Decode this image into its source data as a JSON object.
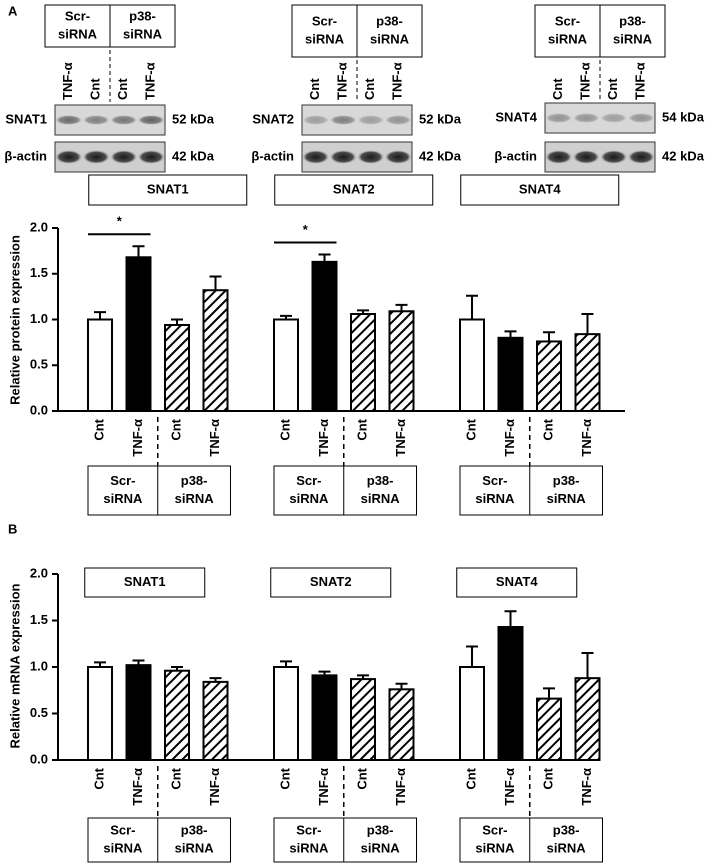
{
  "sirna_labels": [
    [
      "Scr-",
      "siRNA"
    ],
    [
      "p38-",
      "siRNA"
    ]
  ],
  "blots": [
    {
      "target": "SNAT1",
      "target_kda": "52 kDa",
      "control": "β-actin",
      "control_kda": "42 kDa",
      "lanes": [
        "TNF-α",
        "Cnt",
        "Cnt",
        "TNF-α"
      ]
    },
    {
      "target": "SNAT2",
      "target_kda": "52 kDa",
      "control": "β-actin",
      "control_kda": "42 kDa",
      "lanes": [
        "Cnt",
        "TNF-α",
        "Cnt",
        "TNF-α"
      ]
    },
    {
      "target": "SNAT4",
      "target_kda": "54 kDa",
      "control": "β-actin",
      "control_kda": "42 kDa",
      "lanes": [
        "Cnt",
        "TNF-α",
        "Cnt",
        "TNF-α"
      ]
    }
  ],
  "chart_data": [
    {
      "type": "bar",
      "panel_label": "A",
      "ylabel": "Relative protein expression",
      "categories": [
        "Cnt",
        "TNF-α",
        "Cnt",
        "TNF-α"
      ],
      "fills": [
        "white",
        "black",
        "hatch",
        "hatch"
      ],
      "ylim": [
        0,
        2
      ],
      "yticks": [
        {
          "value": 0,
          "label": "0.0"
        },
        0.5,
        {
          "value": 1,
          "label": "1.0"
        },
        1.5,
        {
          "value": 2,
          "label": "2.0"
        }
      ],
      "series": [
        {
          "name": "SNAT1",
          "values": [
            1.0,
            1.68,
            0.94,
            1.32
          ],
          "errors": [
            0.08,
            0.12,
            0.06,
            0.15
          ],
          "significance": "*"
        },
        {
          "name": "SNAT2",
          "values": [
            1.0,
            1.63,
            1.06,
            1.09
          ],
          "errors": [
            0.04,
            0.08,
            0.04,
            0.07
          ],
          "significance": "*"
        },
        {
          "name": "SNAT4",
          "values": [
            1.0,
            0.8,
            0.76,
            0.84
          ],
          "errors": [
            0.26,
            0.07,
            0.1,
            0.22
          ]
        }
      ]
    },
    {
      "type": "bar",
      "panel_label": "B",
      "ylabel": "Relative mRNA expression",
      "categories": [
        "Cnt",
        "TNF-α",
        "Cnt",
        "TNF-α"
      ],
      "fills": [
        "white",
        "black",
        "hatch",
        "hatch"
      ],
      "ylim": [
        0,
        2
      ],
      "yticks": [
        {
          "value": 0,
          "label": "0.0"
        },
        0.5,
        {
          "value": 1,
          "label": "1.0"
        },
        1.5,
        {
          "value": 2,
          "label": "2.0"
        }
      ],
      "series": [
        {
          "name": "SNAT1",
          "values": [
            1.0,
            1.02,
            0.96,
            0.84
          ],
          "errors": [
            0.05,
            0.05,
            0.04,
            0.04
          ]
        },
        {
          "name": "SNAT2",
          "values": [
            1.0,
            0.91,
            0.87,
            0.76
          ],
          "errors": [
            0.06,
            0.04,
            0.04,
            0.06
          ]
        },
        {
          "name": "SNAT4",
          "values": [
            1.0,
            1.43,
            0.66,
            0.88
          ],
          "errors": [
            0.22,
            0.17,
            0.11,
            0.27
          ]
        }
      ]
    }
  ]
}
